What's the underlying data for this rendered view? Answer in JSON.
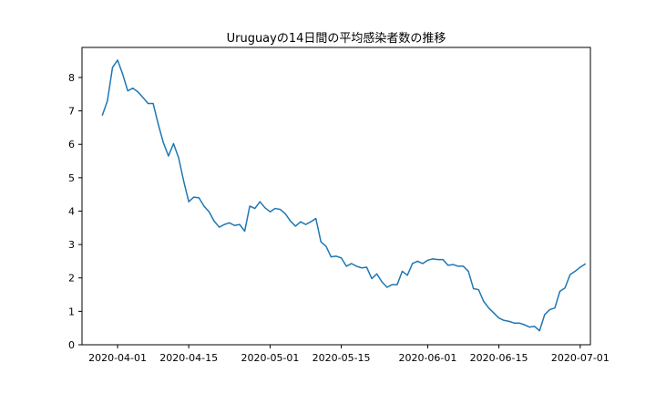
{
  "chart_data": {
    "type": "line",
    "title": "Uruguayの14日間の平均感染者数の推移",
    "xlabel": "",
    "ylabel": "",
    "x_start": "2020-03-29",
    "x_end": "2020-06-29",
    "xlim": [
      "2020-03-25",
      "2020-07-03"
    ],
    "ylim": [
      0,
      8.9
    ],
    "xticks": [
      "2020-04-01",
      "2020-04-15",
      "2020-05-01",
      "2020-05-15",
      "2020-06-01",
      "2020-06-15",
      "2020-07-01"
    ],
    "yticks": [
      0,
      1,
      2,
      3,
      4,
      5,
      6,
      7,
      8
    ],
    "grid": false,
    "line_color": "#1f77b4",
    "series": [
      {
        "name": "",
        "values": [
          6.87,
          7.3,
          8.3,
          8.52,
          8.1,
          7.6,
          7.68,
          7.57,
          7.4,
          7.22,
          7.22,
          6.6,
          6.05,
          5.65,
          6.02,
          5.6,
          4.9,
          4.28,
          4.42,
          4.4,
          4.15,
          3.98,
          3.7,
          3.52,
          3.6,
          3.65,
          3.57,
          3.6,
          3.4,
          4.15,
          4.08,
          4.28,
          4.1,
          3.98,
          4.08,
          4.05,
          3.92,
          3.7,
          3.55,
          3.68,
          3.6,
          3.68,
          3.78,
          3.08,
          2.95,
          2.63,
          2.65,
          2.6,
          2.35,
          2.43,
          2.35,
          2.3,
          2.32,
          1.98,
          2.12,
          1.88,
          1.72,
          1.8,
          1.8,
          2.2,
          2.08,
          2.43,
          2.5,
          2.43,
          2.53,
          2.57,
          2.55,
          2.55,
          2.38,
          2.4,
          2.35,
          2.35,
          2.2,
          1.68,
          1.65,
          1.3,
          1.1,
          0.95,
          0.8,
          0.73,
          0.7,
          0.65,
          0.65,
          0.6,
          0.53,
          0.55,
          0.42,
          0.9,
          1.05,
          1.1,
          1.6,
          1.7,
          2.1,
          2.2,
          2.32,
          2.42
        ]
      }
    ]
  }
}
